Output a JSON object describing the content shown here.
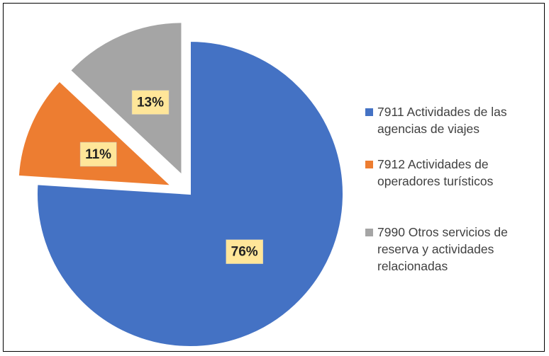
{
  "chart_data": {
    "type": "pie",
    "categories": [
      "7911 Actividades de las agencias de viajes",
      "7912 Actividades de operadores turísticos",
      "7990 Otros servicios de reserva y actividades relacionadas"
    ],
    "values": [
      76,
      11,
      13
    ],
    "value_labels": [
      "76%",
      "11%",
      "13%"
    ],
    "colors": [
      "#4472c4",
      "#ed7d31",
      "#a5a5a5"
    ],
    "legend": "right"
  }
}
